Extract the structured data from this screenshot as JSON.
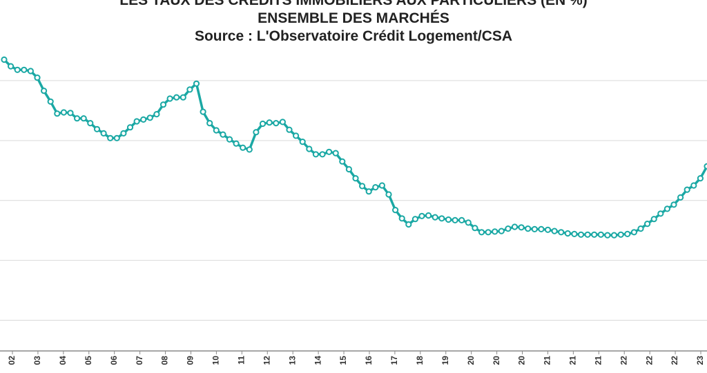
{
  "chart_data": {
    "type": "line",
    "title": [
      "LES TAUX DES CRÉDITS IMMOBILIERS AUX PARTICULIERS (EN %)",
      "ENSEMBLE DES MARCHÉS",
      "Source : L'Observatoire Crédit Logement/CSA"
    ],
    "grid": true,
    "colors": {
      "line": "#1aa8a4",
      "marker_fill": "#ffffff",
      "grid": "#d9d9d9",
      "axis": "#888888"
    },
    "x_tick_labels": [
      "02",
      "03",
      "04",
      "05",
      "06",
      "07",
      "08",
      "09",
      "10",
      "11",
      "12",
      "13",
      "14",
      "15",
      "16",
      "17",
      "18",
      "19",
      "20",
      "20",
      "20",
      "21",
      "21",
      "21",
      "22",
      "22",
      "22",
      "23"
    ],
    "y_range": [
      0.5,
      6.0
    ],
    "series": [
      {
        "values": [
          5.35,
          5.24,
          5.18,
          5.18,
          5.16,
          5.05,
          4.83,
          4.65,
          4.45,
          4.47,
          4.46,
          4.37,
          4.37,
          4.29,
          4.19,
          4.12,
          4.04,
          4.04,
          4.12,
          4.22,
          4.32,
          4.35,
          4.38,
          4.44,
          4.6,
          4.7,
          4.72,
          4.72,
          4.85,
          4.95,
          4.48,
          4.29,
          4.17,
          4.1,
          4.02,
          3.95,
          3.88,
          3.85,
          4.14,
          4.28,
          4.3,
          4.29,
          4.31,
          4.18,
          4.08,
          3.98,
          3.86,
          3.77,
          3.77,
          3.81,
          3.79,
          3.65,
          3.52,
          3.37,
          3.24,
          3.15,
          3.22,
          3.25,
          3.1,
          2.84,
          2.7,
          2.6,
          2.69,
          2.74,
          2.75,
          2.72,
          2.7,
          2.68,
          2.67,
          2.67,
          2.63,
          2.54,
          2.47,
          2.47,
          2.48,
          2.49,
          2.53,
          2.56,
          2.55,
          2.53,
          2.52,
          2.52,
          2.51,
          2.49,
          2.47,
          2.45,
          2.44,
          2.43,
          2.43,
          2.43,
          2.43,
          2.42,
          2.42,
          2.43,
          2.44,
          2.47,
          2.53,
          2.61,
          2.69,
          2.78,
          2.86,
          2.93,
          3.05,
          3.18,
          3.25,
          3.37,
          3.57
        ]
      }
    ]
  }
}
